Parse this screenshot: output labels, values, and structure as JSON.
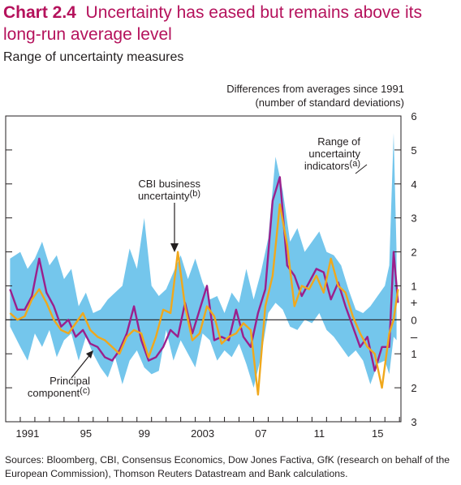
{
  "header": {
    "chart_number": "Chart 2.4",
    "title": "Uncertainty has eased but remains above its long-run average level",
    "subtitle": "Range of uncertainty measures"
  },
  "axis_note": {
    "line1": "Differences from averages since 1991",
    "line2": "(number of standard deviations)"
  },
  "footer": {
    "sources": "Sources: Bloomberg, CBI, Consensus Economics, Dow Jones Factiva, GfK (research on behalf of the European Commission), Thomson Reuters Datastream and Bank calculations."
  },
  "colors": {
    "title": "#b5125c",
    "range_band": "#74c6ec",
    "principal_component": "#9c1f8c",
    "cbi_business": "#f0a81c",
    "axis": "#231f20"
  },
  "chart_data": {
    "type": "line",
    "x_tick_labels": [
      "1991",
      "95",
      "99",
      "2003",
      "07",
      "11",
      "15"
    ],
    "x_tick_values": [
      1991,
      1995,
      1999,
      2003,
      2007,
      2011,
      2015
    ],
    "xlim": [
      1990.0,
      2017.1
    ],
    "ylim": [
      -3,
      6
    ],
    "y_tick_values": [
      6,
      5,
      4,
      3,
      2,
      1,
      0,
      -1,
      -2,
      -3
    ],
    "y_tick_labels": [
      "6",
      "5",
      "4",
      "3",
      "2",
      "1",
      "0",
      "1",
      "2",
      "3"
    ],
    "y_sign_plus": "+",
    "y_sign_minus": "–",
    "zero_line": true,
    "grid": false,
    "annotations": {
      "range": {
        "lines": [
          "Range of",
          "uncertainty",
          "indicators"
        ],
        "sup": "(a)"
      },
      "cbi": {
        "lines": [
          "CBI business",
          "uncertainty"
        ],
        "sup": "(b)"
      },
      "pc": {
        "lines": [
          "Principal",
          "component"
        ],
        "sup": "(c)"
      }
    },
    "range_band": {
      "x": [
        1990.3,
        1991.0,
        1991.5,
        1992.0,
        1992.5,
        1993.0,
        1993.5,
        1994.0,
        1994.5,
        1995.0,
        1995.5,
        1996.0,
        1996.5,
        1997.0,
        1997.5,
        1998.0,
        1998.5,
        1999.0,
        1999.5,
        2000.0,
        2000.5,
        2001.0,
        2001.5,
        2002.0,
        2002.5,
        2003.0,
        2003.5,
        2004.0,
        2004.5,
        2005.0,
        2005.5,
        2006.0,
        2006.5,
        2007.0,
        2007.5,
        2008.0,
        2008.5,
        2009.0,
        2009.5,
        2010.0,
        2010.5,
        2011.0,
        2011.5,
        2012.0,
        2012.5,
        2013.0,
        2013.5,
        2014.0,
        2014.5,
        2015.0,
        2015.5,
        2016.0,
        2016.3,
        2016.6,
        2016.8
      ],
      "upper": [
        1.8,
        2.0,
        1.5,
        1.8,
        2.3,
        1.6,
        1.9,
        1.2,
        1.5,
        0.4,
        0.8,
        0.2,
        0.3,
        0.6,
        0.8,
        1.0,
        2.1,
        1.5,
        3.0,
        1.0,
        0.7,
        0.9,
        1.4,
        1.9,
        1.2,
        1.8,
        1.1,
        0.6,
        0.7,
        0.2,
        0.8,
        0.5,
        1.5,
        0.6,
        1.4,
        2.4,
        4.8,
        3.8,
        2.3,
        2.7,
        2.0,
        2.3,
        2.6,
        2.0,
        1.9,
        1.6,
        0.9,
        0.3,
        0.2,
        0.4,
        0.7,
        1.0,
        1.6,
        5.5,
        2.0
      ],
      "lower": [
        -0.2,
        -0.8,
        -1.2,
        -0.4,
        -0.8,
        -0.3,
        -1.1,
        -0.6,
        -0.4,
        -1.2,
        -0.5,
        -1.0,
        -1.4,
        -1.7,
        -1.1,
        -1.9,
        -1.2,
        -0.9,
        -1.4,
        -1.6,
        -1.5,
        -0.3,
        -1.2,
        -0.6,
        -1.0,
        -1.4,
        -0.4,
        -0.6,
        -1.2,
        -0.9,
        -1.1,
        -0.7,
        -1.3,
        -2.0,
        -1.1,
        0.2,
        0.5,
        0.3,
        -0.2,
        -0.3,
        0.0,
        -0.1,
        0.2,
        -0.3,
        -0.5,
        -0.8,
        -1.1,
        -0.9,
        -1.2,
        -1.9,
        -1.3,
        -1.2,
        -1.6,
        -0.5,
        -0.6
      ]
    },
    "series": [
      {
        "name": "Principal component",
        "role": "principal",
        "x": [
          1990.3,
          1990.8,
          1991.3,
          1991.8,
          1992.3,
          1992.8,
          1993.3,
          1993.8,
          1994.3,
          1994.8,
          1995.3,
          1995.8,
          1996.3,
          1996.8,
          1997.3,
          1997.8,
          1998.3,
          1998.8,
          1999.3,
          1999.8,
          2000.3,
          2000.8,
          2001.3,
          2001.8,
          2002.3,
          2002.8,
          2003.3,
          2003.8,
          2004.3,
          2004.8,
          2005.3,
          2005.8,
          2006.3,
          2006.8,
          2007.3,
          2007.8,
          2008.3,
          2008.8,
          2009.3,
          2009.8,
          2010.3,
          2010.8,
          2011.3,
          2011.8,
          2012.3,
          2012.8,
          2013.3,
          2013.8,
          2014.3,
          2014.8,
          2015.3,
          2015.8,
          2016.3,
          2016.6,
          2016.9
        ],
        "values": [
          0.9,
          0.3,
          0.3,
          0.7,
          1.8,
          0.8,
          0.4,
          -0.2,
          0.0,
          -0.5,
          -0.3,
          -0.7,
          -0.8,
          -1.1,
          -1.2,
          -0.9,
          -0.4,
          0.4,
          -0.6,
          -1.2,
          -1.1,
          -0.8,
          -0.3,
          -0.5,
          0.5,
          -0.4,
          0.3,
          1.0,
          -0.6,
          -0.5,
          -0.6,
          0.3,
          -0.5,
          -0.8,
          0.2,
          0.9,
          3.5,
          4.2,
          1.6,
          1.3,
          0.7,
          1.1,
          1.5,
          1.4,
          0.6,
          1.1,
          0.4,
          -0.2,
          -0.8,
          -0.5,
          -1.5,
          -0.8,
          -0.8,
          2.0,
          0.5
        ]
      },
      {
        "name": "CBI business uncertainty",
        "role": "cbi",
        "x": [
          1990.3,
          1990.8,
          1991.3,
          1991.8,
          1992.3,
          1992.8,
          1993.3,
          1993.8,
          1994.3,
          1994.8,
          1995.3,
          1995.8,
          1996.3,
          1996.8,
          1997.3,
          1997.8,
          1998.3,
          1998.8,
          1999.3,
          1999.8,
          2000.3,
          2000.8,
          2001.3,
          2001.8,
          2002.3,
          2002.8,
          2003.3,
          2003.8,
          2004.3,
          2004.8,
          2005.3,
          2005.8,
          2006.3,
          2006.8,
          2007.3,
          2007.8,
          2008.3,
          2008.8,
          2009.3,
          2009.8,
          2010.3,
          2010.8,
          2011.3,
          2011.8,
          2012.3,
          2012.8,
          2013.3,
          2013.8,
          2014.3,
          2014.8,
          2015.3,
          2015.8,
          2016.3,
          2016.6,
          2016.9
        ],
        "values": [
          0.2,
          0.0,
          0.1,
          0.6,
          0.9,
          0.5,
          0.0,
          -0.3,
          -0.4,
          -0.1,
          0.2,
          -0.3,
          -0.5,
          -0.6,
          -0.8,
          -1.0,
          -0.5,
          -0.3,
          -0.4,
          -1.1,
          -0.5,
          0.3,
          0.2,
          2.0,
          0.4,
          -0.6,
          -0.4,
          0.4,
          0.1,
          -0.7,
          -0.5,
          -0.4,
          -0.1,
          -0.3,
          -2.2,
          0.4,
          1.3,
          3.4,
          2.2,
          0.4,
          1.0,
          0.9,
          1.3,
          0.8,
          1.8,
          1.0,
          0.8,
          0.1,
          -0.4,
          -0.8,
          -1.0,
          -2.0,
          -0.4,
          0.0,
          0.9
        ]
      }
    ]
  }
}
